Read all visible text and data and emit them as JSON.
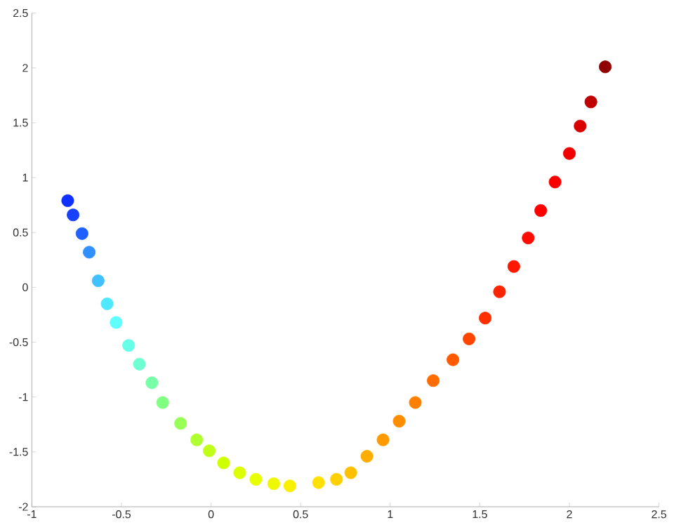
{
  "chart_data": {
    "type": "scatter",
    "x": [
      -0.8,
      -0.77,
      -0.72,
      -0.68,
      -0.63,
      -0.58,
      -0.53,
      -0.46,
      -0.4,
      -0.33,
      -0.27,
      -0.17,
      -0.08,
      -0.01,
      0.07,
      0.16,
      0.25,
      0.35,
      0.44,
      0.6,
      0.7,
      0.78,
      0.87,
      0.96,
      1.05,
      1.14,
      1.24,
      1.35,
      1.44,
      1.53,
      1.61,
      1.69,
      1.77,
      1.84,
      1.92,
      2.0,
      2.06,
      2.12,
      2.2
    ],
    "values": [
      0.79,
      0.66,
      0.49,
      0.32,
      0.06,
      -0.15,
      -0.32,
      -0.53,
      -0.7,
      -0.87,
      -1.05,
      -1.24,
      -1.39,
      -1.49,
      -1.6,
      -1.69,
      -1.75,
      -1.79,
      -1.81,
      -1.78,
      -1.75,
      -1.69,
      -1.54,
      -1.39,
      -1.22,
      -1.05,
      -0.85,
      -0.66,
      -0.47,
      -0.28,
      -0.04,
      0.19,
      0.45,
      0.7,
      0.96,
      1.22,
      1.47,
      1.69,
      2.01
    ],
    "colors": [
      "#1030ff",
      "#1840ff",
      "#2060ff",
      "#3090ff",
      "#40c0ff",
      "#50e8ff",
      "#60ffff",
      "#68ffe8",
      "#70ffd0",
      "#78ffa8",
      "#80ff80",
      "#98ff58",
      "#b0ff30",
      "#c0ff18",
      "#d0ff00",
      "#dcff00",
      "#e8ff00",
      "#f0f800",
      "#f8f000",
      "#ffe000",
      "#ffd000",
      "#ffc000",
      "#ffad00",
      "#ff9a00",
      "#ff8d00",
      "#ff8000",
      "#ff6d00",
      "#ff5a00",
      "#ff4500",
      "#ff3000",
      "#ff2400",
      "#ff1800",
      "#ff0c00",
      "#ff0000",
      "#f80000",
      "#f00000",
      "#d80000",
      "#c00000",
      "#900000"
    ],
    "marker": "circle",
    "xlim": [
      -1,
      2.5
    ],
    "xticks": [
      -1,
      -0.5,
      0,
      0.5,
      1,
      1.5,
      2,
      2.5
    ],
    "ylim": [
      -2,
      2.5
    ],
    "yticks": [
      -2,
      -1.5,
      -1,
      -0.5,
      0,
      0.5,
      1,
      1.5,
      2,
      2.5
    ]
  }
}
